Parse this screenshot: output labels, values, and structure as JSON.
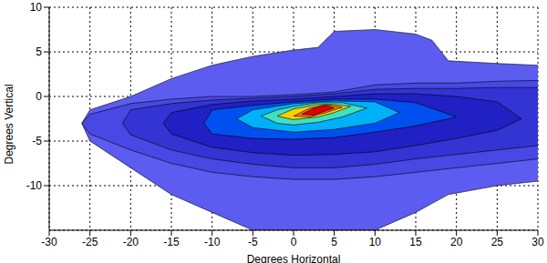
{
  "chart_data": {
    "type": "contour",
    "x_label": "Degrees Horizontal",
    "y_label": "Degrees Vertical",
    "xlim": [
      -30,
      30
    ],
    "ylim": [
      -15,
      10
    ],
    "xticks": [
      -30,
      -25,
      -20,
      -15,
      -10,
      -5,
      0,
      5,
      10,
      15,
      20,
      25,
      30
    ],
    "yticks": [
      -10,
      -5,
      0,
      5,
      10
    ],
    "grid": true,
    "contours": [
      {
        "color": "#5c5cf0",
        "x": [
          -26,
          -25,
          -20,
          -15,
          -10,
          -5,
          0,
          3,
          5,
          10,
          15,
          17,
          19,
          25,
          30
        ],
        "low": [
          -3,
          -5,
          -8,
          -11,
          -13,
          -15,
          -15,
          -15,
          -15,
          -15,
          -13,
          -12,
          -11,
          -10,
          -9.5
        ],
        "high": [
          -3,
          -1.5,
          0,
          2,
          3.5,
          4.5,
          5.2,
          5.5,
          7.3,
          7.5,
          7,
          6.3,
          4,
          3.7,
          3.5
        ]
      },
      {
        "color": "#4848e4",
        "x": [
          -26,
          -25,
          -20,
          -15,
          -10,
          -5,
          0,
          5,
          10,
          15,
          20,
          25,
          30
        ],
        "low": [
          -3,
          -4.2,
          -6,
          -7.5,
          -8.5,
          -9,
          -9.3,
          -9.3,
          -9,
          -8.5,
          -8,
          -7.5,
          -7
        ],
        "high": [
          -3,
          -2,
          -0.8,
          -0.3,
          0,
          0,
          0.2,
          0.5,
          1.3,
          1.5,
          1.5,
          1.7,
          1.8
        ]
      },
      {
        "color": "#3434d4",
        "x": [
          -21,
          -20,
          -15,
          -10,
          -5,
          0,
          5,
          10,
          15,
          20,
          25,
          30
        ],
        "low": [
          -3,
          -4.3,
          -6,
          -7,
          -7.6,
          -8,
          -8,
          -7.6,
          -7,
          -6.5,
          -6,
          -5.5
        ],
        "high": [
          -3,
          -1.5,
          -0.8,
          -0.4,
          -0.2,
          0,
          0.3,
          0.8,
          0.9,
          0.9,
          1,
          1
        ]
      },
      {
        "color": "#2020c4",
        "x": [
          -16,
          -15,
          -10,
          -5,
          0,
          5,
          10,
          15,
          20,
          25,
          28
        ],
        "low": [
          -3,
          -4.2,
          -5.7,
          -6.3,
          -6.6,
          -6.5,
          -6.2,
          -5.5,
          -4.7,
          -3.8,
          -2.5
        ],
        "high": [
          -3,
          -1.8,
          -0.9,
          -0.5,
          -0.3,
          0,
          0.3,
          0.3,
          0,
          -0.6,
          -2.5
        ]
      },
      {
        "color": "#0050f0",
        "x": [
          -11,
          -10,
          -5,
          0,
          5,
          10,
          15,
          20
        ],
        "low": [
          -3,
          -4.2,
          -4.7,
          -4.8,
          -4.6,
          -4,
          -3.3,
          -2.3
        ],
        "high": [
          -3,
          -1.5,
          -1,
          -0.6,
          -0.3,
          -0.3,
          -0.7,
          -2.3
        ]
      },
      {
        "color": "#00b0f8",
        "x": [
          -7,
          -5,
          0,
          5,
          10,
          13
        ],
        "low": [
          -2.5,
          -3.5,
          -4,
          -3.7,
          -3,
          -1.8
        ],
        "high": [
          -2.5,
          -1.5,
          -0.8,
          -0.5,
          -0.6,
          -1.8
        ]
      },
      {
        "color": "#40e0c0",
        "x": [
          -4,
          -2,
          0,
          3,
          6,
          9
        ],
        "low": [
          -2.2,
          -3,
          -3.2,
          -2.9,
          -2.3,
          -1.3
        ],
        "high": [
          -2.2,
          -1.5,
          -1.1,
          -0.7,
          -0.7,
          -1.3
        ]
      },
      {
        "color": "#ffd000",
        "x": [
          -2,
          0,
          3,
          5,
          7
        ],
        "low": [
          -2.2,
          -2.6,
          -2.3,
          -1.8,
          -1.1
        ],
        "high": [
          -2.2,
          -1.4,
          -0.9,
          -0.9,
          -1.1
        ]
      },
      {
        "color": "#ff7800",
        "x": [
          0,
          2,
          4,
          6
        ],
        "low": [
          -2.2,
          -2.3,
          -1.8,
          -1.2
        ],
        "high": [
          -2.2,
          -1.3,
          -0.9,
          -1.2
        ]
      },
      {
        "color": "#e00000",
        "x": [
          1,
          2.5,
          4,
          5
        ],
        "low": [
          -2,
          -2.1,
          -1.6,
          -1.3
        ],
        "high": [
          -2,
          -1.3,
          -1,
          -1.3
        ]
      }
    ]
  }
}
